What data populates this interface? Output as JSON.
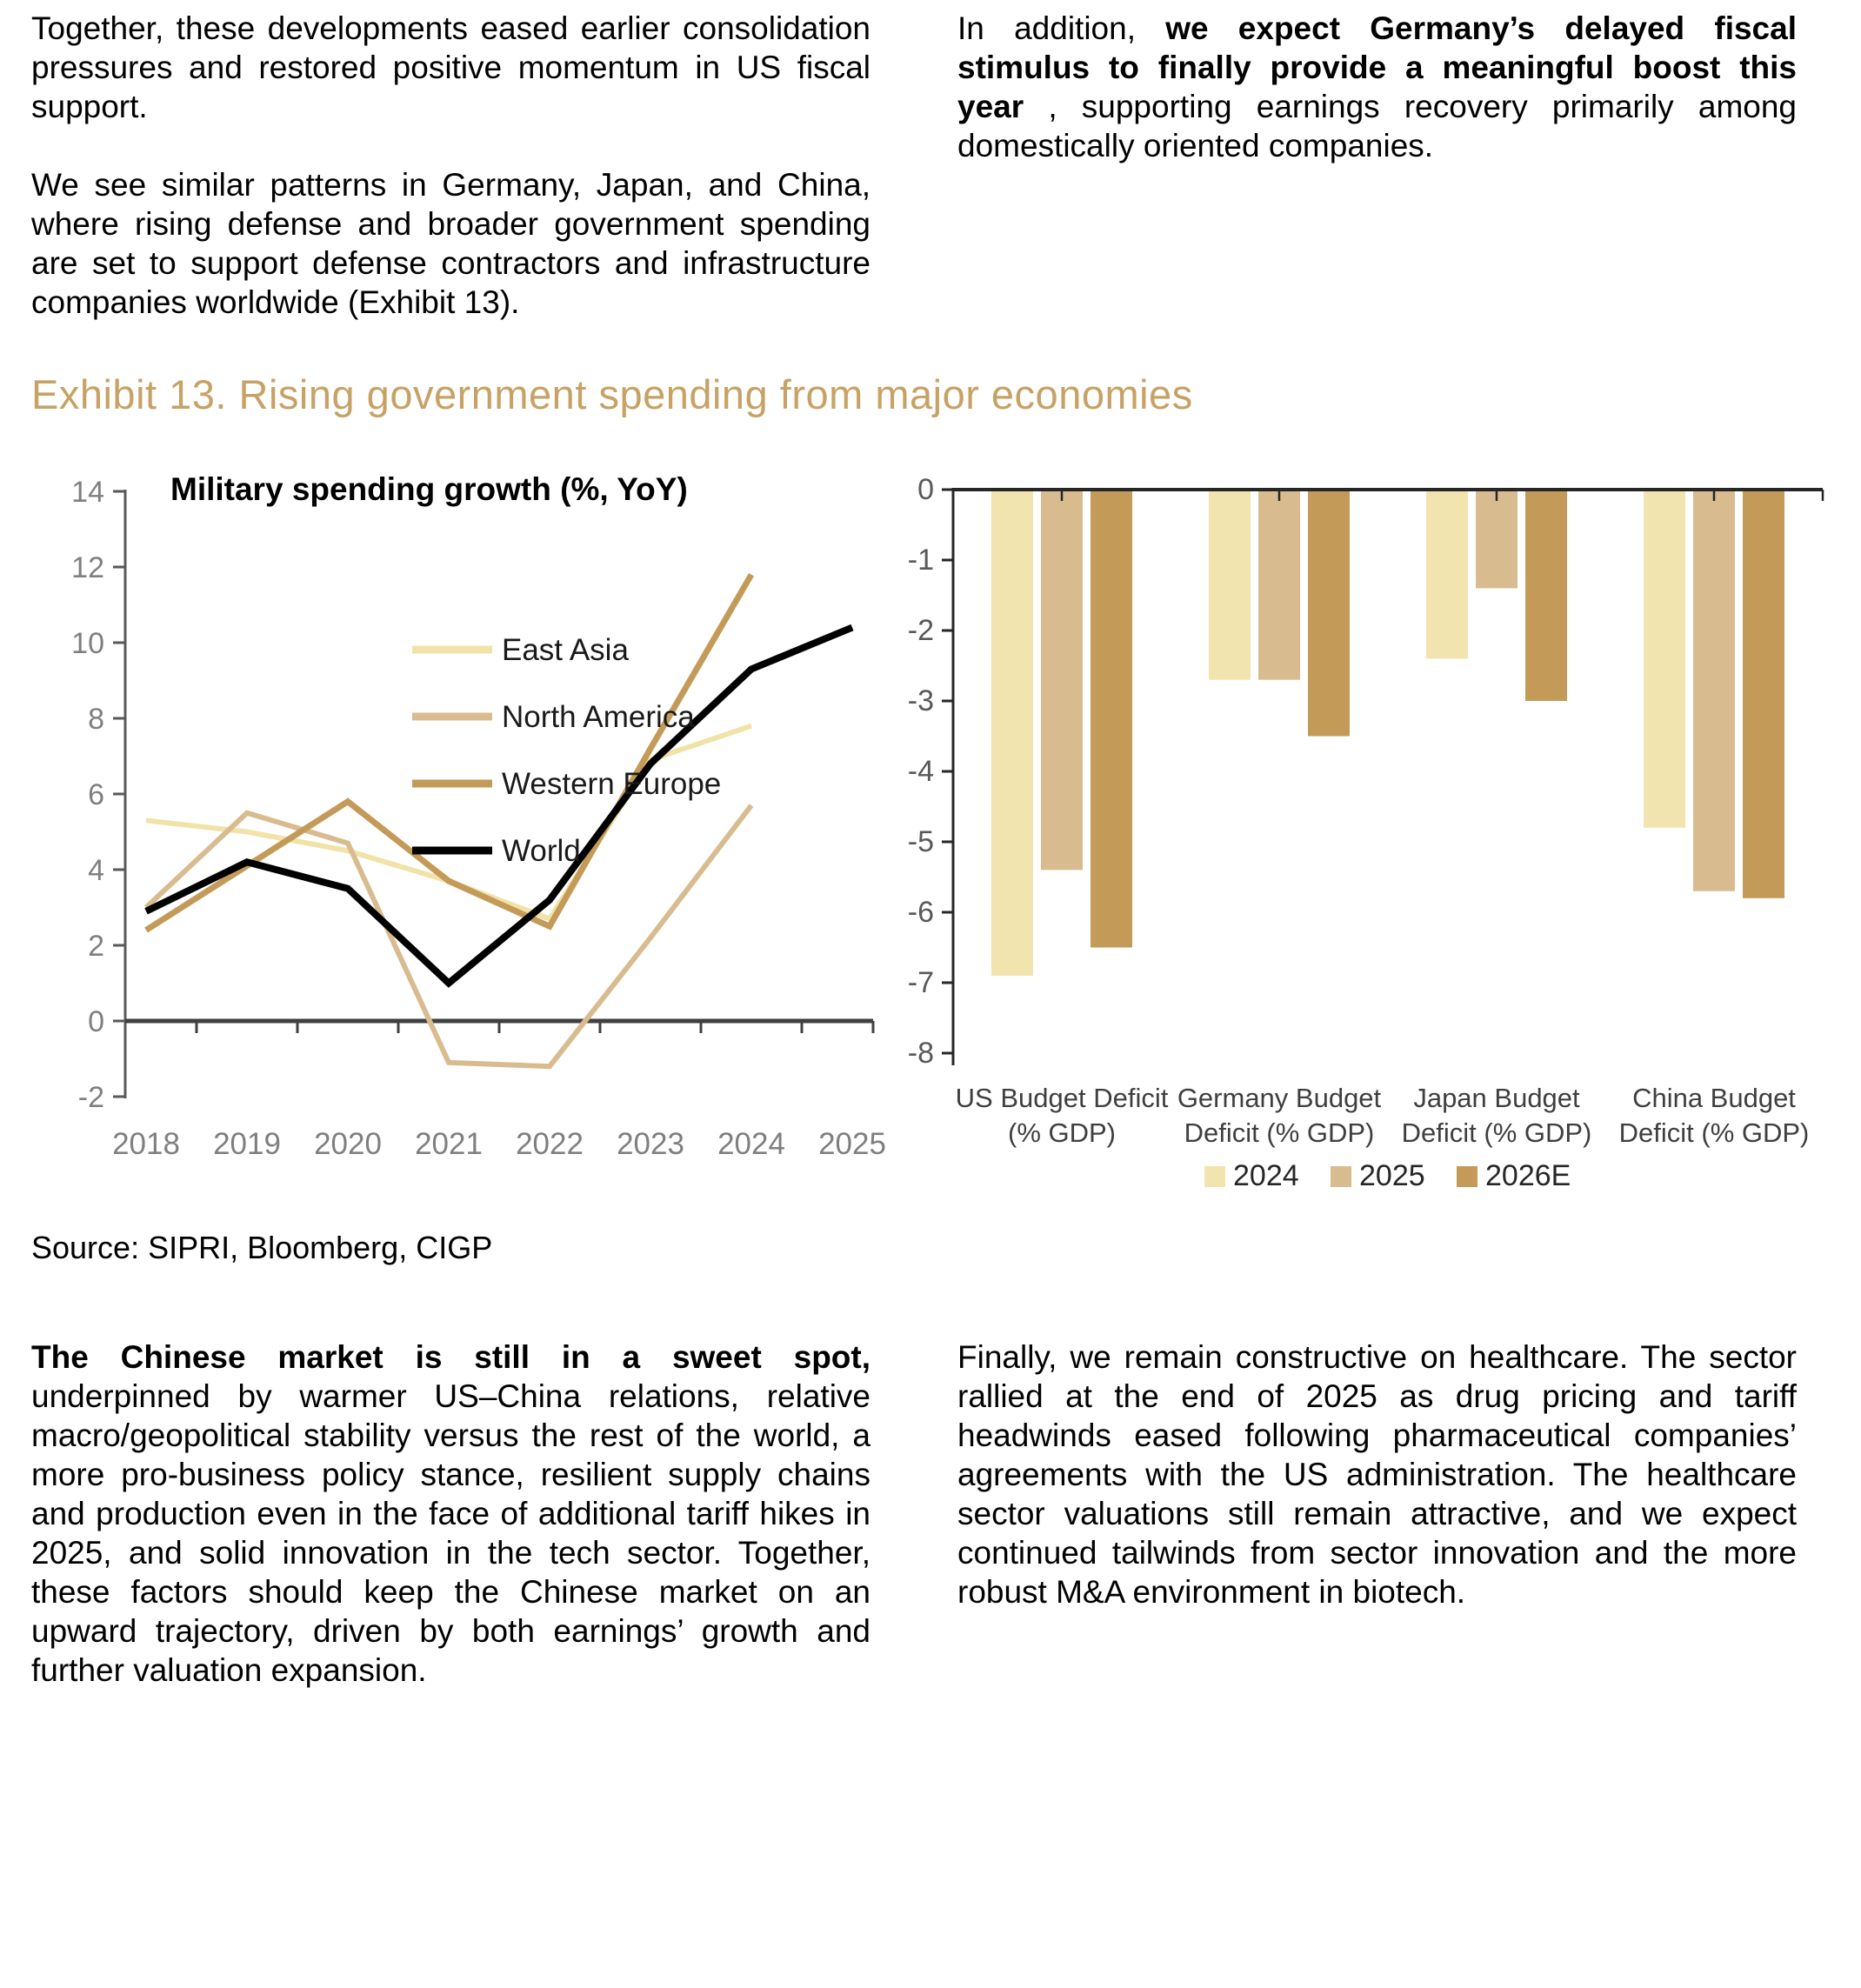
{
  "top_left": {
    "p1": "Together, these developments eased earlier consolidation pressures and restored positive momentum in US fiscal support.",
    "p2": "We see similar patterns in Germany, Japan, and China, where rising defense and broader government spending are set to support defense contractors and infrastructure companies worldwide (Exhibit 13)."
  },
  "top_right": {
    "s1": "In addition, ",
    "s2": "we expect Germany’s delayed fiscal stimulus to finally provide a meaningful boost this year",
    "s3": " , supporting earnings recovery primarily among domestically oriented companies."
  },
  "exhibit": {
    "title": "Exhibit 13. Rising government spending from major economies",
    "title_color": "#C7A265",
    "source": "Source: SIPRI, Bloomberg, CIGP"
  },
  "chart_data": [
    {
      "type": "line",
      "title": "Military spending growth (%, YoY)",
      "x": [
        2018,
        2019,
        2020,
        2021,
        2022,
        2023,
        2024,
        2025
      ],
      "series": [
        {
          "name": "East Asia",
          "color": "#F1E3A7",
          "values": [
            5.3,
            5.0,
            4.5,
            3.7,
            2.7,
            6.9,
            7.8,
            null
          ]
        },
        {
          "name": "North America",
          "color": "#D8BC8F",
          "values": [
            3.0,
            5.5,
            4.7,
            -1.1,
            -1.2,
            2.2,
            5.7,
            null
          ]
        },
        {
          "name": "Western Europe",
          "color": "#C49A58",
          "values": [
            2.4,
            4.1,
            5.8,
            3.7,
            2.5,
            7.2,
            11.8,
            null
          ]
        },
        {
          "name": "World",
          "color": "#000000",
          "values": [
            2.9,
            4.2,
            3.5,
            1.0,
            3.2,
            6.8,
            9.3,
            10.4
          ]
        }
      ],
      "ylim": [
        -2,
        14
      ],
      "ytick_step": 2,
      "grid": false,
      "legend_position": "upper-left",
      "tick_color": "#7F7F7F"
    },
    {
      "type": "bar",
      "categories": [
        [
          "US Budget Deficit",
          "(% GDP)"
        ],
        [
          "Germany Budget",
          "Deficit (% GDP)"
        ],
        [
          "Japan Budget",
          "Deficit (% GDP)"
        ],
        [
          "China Budget",
          "Deficit (% GDP)"
        ]
      ],
      "series": [
        {
          "name": "2024",
          "color": "#F1E4AE",
          "values": [
            -6.9,
            -2.7,
            -2.4,
            -4.8
          ]
        },
        {
          "name": "2025",
          "color": "#D8BC8F",
          "values": [
            -5.4,
            -2.7,
            -1.4,
            -5.7
          ]
        },
        {
          "name": "2026E",
          "color": "#C49A58",
          "values": [
            -6.5,
            -3.5,
            -3.0,
            -5.8
          ]
        }
      ],
      "ylim": [
        -8,
        0
      ],
      "ytick_step": 1,
      "grid": false,
      "legend_position": "bottom",
      "tick_color": "#595959",
      "category_label_color": "#3F3F3F"
    }
  ],
  "bottom_left": {
    "s1": "The Chinese market is still in a sweet spot,",
    "s2": " underpinned by warmer US–China relations, relative macro/geopolitical stability versus the rest of the world, a more pro-business policy stance, resilient supply chains and production even in the face of additional tariff hikes in 2025, and solid innovation in the tech sector. Together, these factors should keep the Chinese market on an upward trajectory, driven by both earnings’ growth and further valuation expansion."
  },
  "bottom_right": {
    "p1": "Finally, we remain constructive on healthcare. The sector rallied at the end of 2025 as drug pricing and tariff headwinds eased following pharmaceutical companies’ agreements with the US administration. The healthcare sector valuations still remain attractive, and we expect continued tailwinds from sector innovation and the more robust M&A environment in biotech."
  }
}
